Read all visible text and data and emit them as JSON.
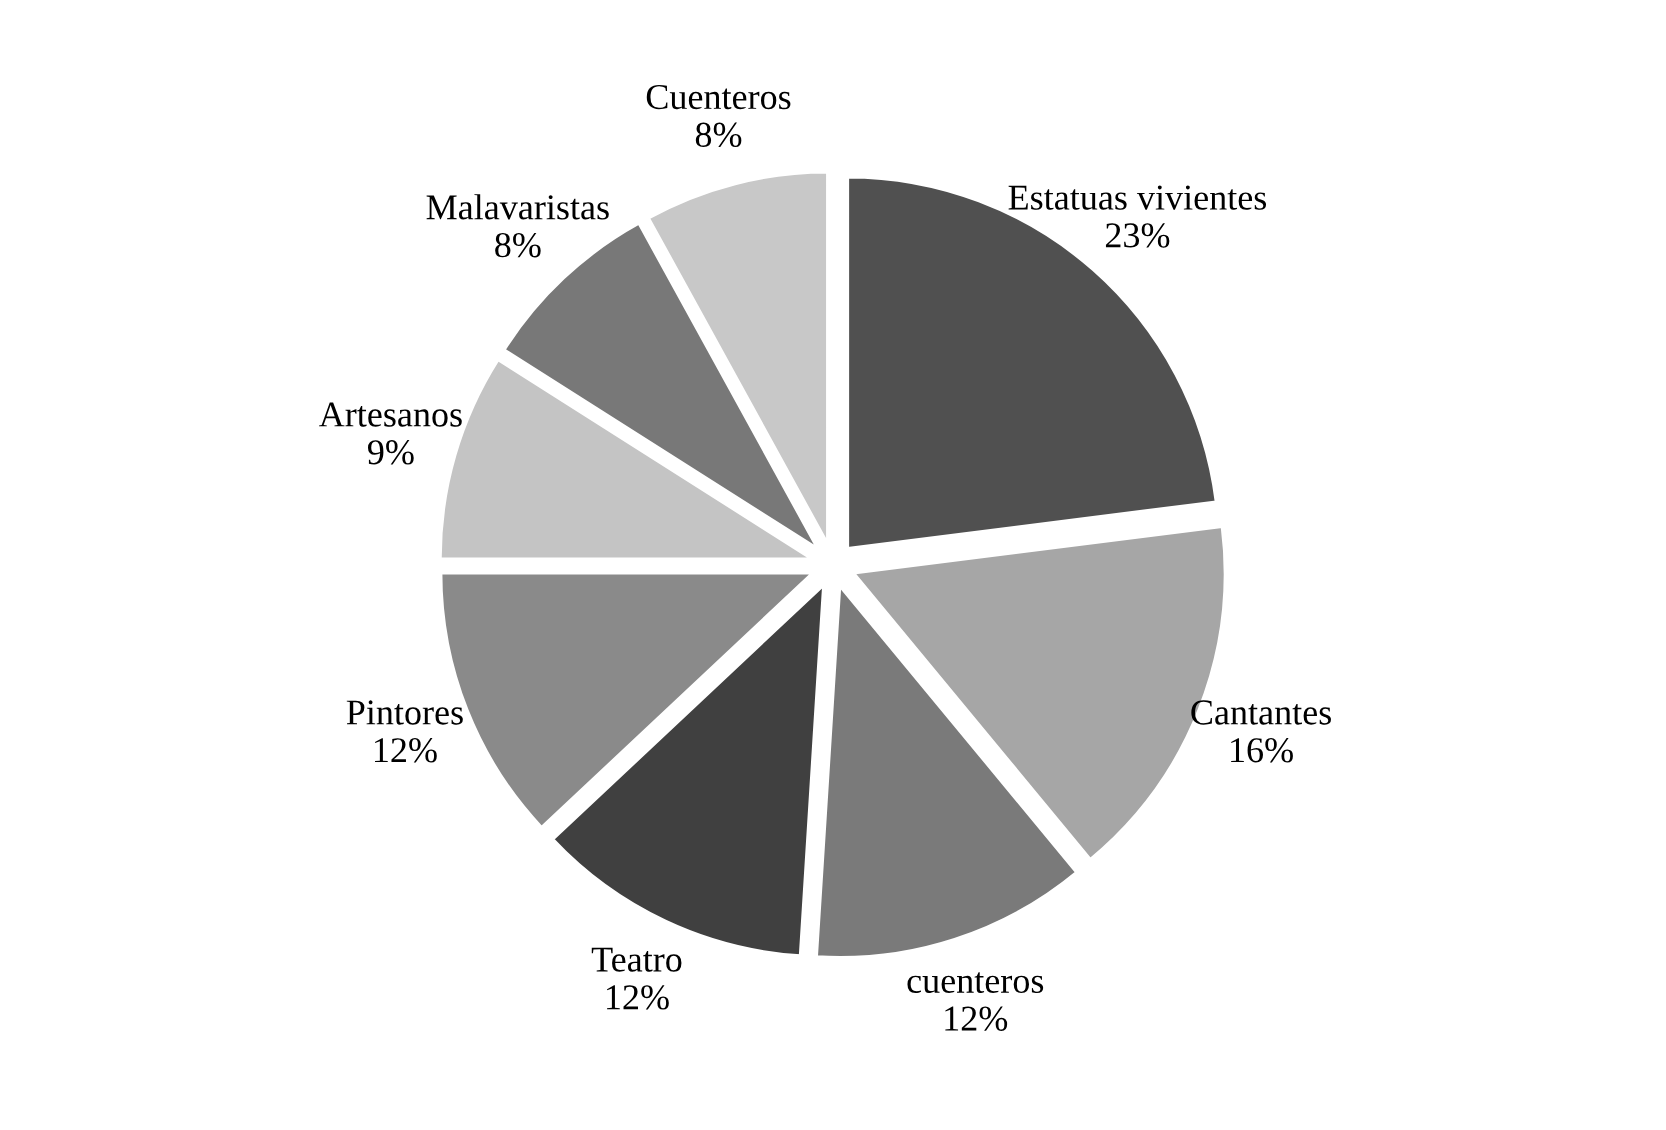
{
  "chart_data": {
    "type": "pie",
    "categories": [
      "Estatuas vivientes",
      "Cantantes",
      "cuenteros",
      "Teatro",
      "Pintores",
      "Artesanos",
      "Malavaristas",
      "Cuenteros"
    ],
    "values": [
      23,
      16,
      12,
      12,
      12,
      9,
      8,
      8
    ],
    "value_labels": [
      "23%",
      "16%",
      "12%",
      "12%",
      "12%",
      "9%",
      "8%",
      "8%"
    ],
    "colors": [
      "#505050",
      "#a6a6a6",
      "#7a7a7a",
      "#404040",
      "#8a8a8a",
      "#c4c4c4",
      "#787878",
      "#c8c8c8"
    ],
    "legend": false
  }
}
